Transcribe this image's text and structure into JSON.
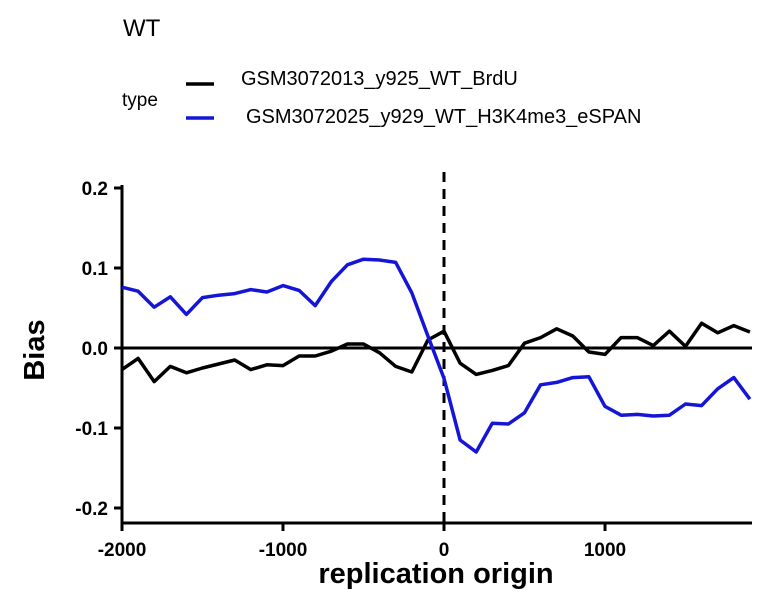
{
  "chart_data": {
    "type": "line",
    "title": "WT",
    "legend_title": "type",
    "legend_position": "top",
    "xlabel": "replication origin",
    "ylabel": "Bias",
    "xlim": [
      -2000,
      1900
    ],
    "ylim": [
      -0.2,
      0.2
    ],
    "x_ticks": [
      -2000,
      -1000,
      0,
      1000
    ],
    "x_tick_labels": [
      "-2000",
      "-1000",
      "0",
      "1000"
    ],
    "y_ticks": [
      0.2,
      0.1,
      0.0,
      -0.1,
      -0.2
    ],
    "y_tick_labels": [
      "0.2",
      "0.1",
      "0.0",
      "-0.1",
      "-0.2"
    ],
    "reference_lines": {
      "horizontal_y": 0.0,
      "vertical_x_dashed": 0
    },
    "grid": false,
    "series": [
      {
        "name": "GSM3072013_y925_WT_BrdU",
        "color": "#000000",
        "x": [
          -2000,
          -1900,
          -1800,
          -1700,
          -1600,
          -1500,
          -1400,
          -1300,
          -1200,
          -1100,
          -1000,
          -900,
          -800,
          -700,
          -600,
          -500,
          -400,
          -300,
          -200,
          -100,
          0,
          100,
          200,
          300,
          400,
          500,
          600,
          700,
          800,
          900,
          1000,
          1100,
          1200,
          1300,
          1400,
          1500,
          1600,
          1700,
          1800,
          1900
        ],
        "values": [
          -0.027,
          -0.013,
          -0.042,
          -0.023,
          -0.031,
          -0.025,
          -0.02,
          -0.015,
          -0.027,
          -0.021,
          -0.022,
          -0.01,
          -0.01,
          -0.004,
          0.005,
          0.005,
          -0.006,
          -0.023,
          -0.03,
          0.01,
          0.021,
          -0.019,
          -0.033,
          -0.028,
          -0.022,
          0.006,
          0.013,
          0.024,
          0.015,
          -0.005,
          -0.008,
          0.013,
          0.013,
          0.003,
          0.021,
          0.002,
          0.031,
          0.019,
          0.028,
          0.02
        ]
      },
      {
        "name": "GSM3072025_y929_WT_H3K4me3_eSPAN",
        "color": "#1515d8",
        "x": [
          -2000,
          -1900,
          -1800,
          -1700,
          -1600,
          -1500,
          -1400,
          -1300,
          -1200,
          -1100,
          -1000,
          -900,
          -800,
          -700,
          -600,
          -500,
          -400,
          -300,
          -200,
          -100,
          0,
          100,
          200,
          300,
          400,
          500,
          600,
          700,
          800,
          900,
          1000,
          1100,
          1200,
          1300,
          1400,
          1500,
          1600,
          1700,
          1800,
          1900
        ],
        "values": [
          0.076,
          0.071,
          0.051,
          0.064,
          0.042,
          0.063,
          0.066,
          0.068,
          0.073,
          0.07,
          0.078,
          0.072,
          0.053,
          0.083,
          0.104,
          0.111,
          0.11,
          0.107,
          0.069,
          0.015,
          -0.038,
          -0.115,
          -0.13,
          -0.094,
          -0.095,
          -0.081,
          -0.046,
          -0.043,
          -0.037,
          -0.036,
          -0.073,
          -0.084,
          -0.083,
          -0.085,
          -0.084,
          -0.07,
          -0.072,
          -0.051,
          -0.037,
          -0.064
        ]
      }
    ]
  }
}
